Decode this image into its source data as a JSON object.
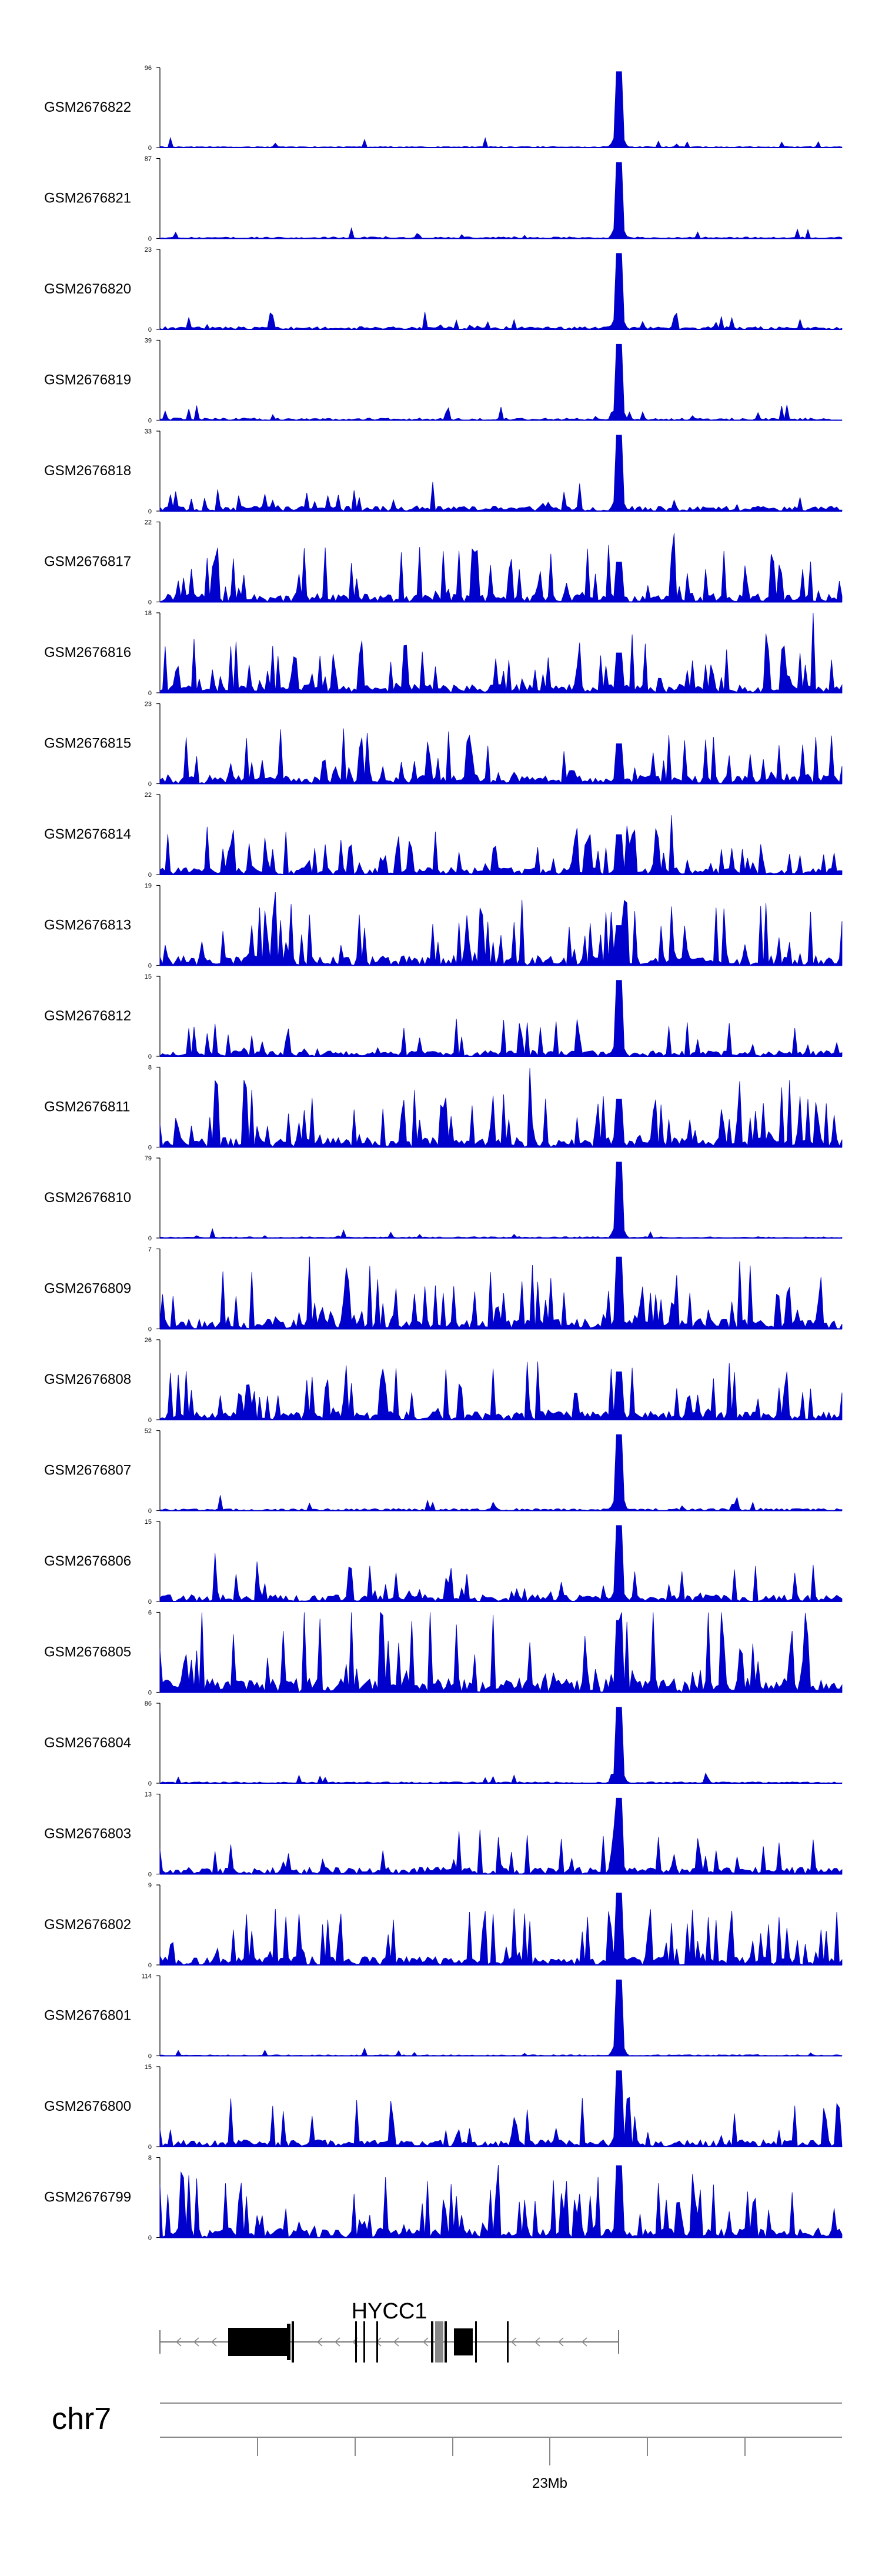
{
  "chart_data": {
    "type": "area",
    "fill_color": "#0000cc",
    "tracks": [
      {
        "name": "GSM2676822",
        "ymax": "96",
        "ymin": "0",
        "peak": 0.95,
        "bg": 0.05,
        "spikiness": 0.02,
        "seed": 11
      },
      {
        "name": "GSM2676821",
        "ymax": "87",
        "ymin": "0",
        "peak": 0.95,
        "bg": 0.06,
        "spikiness": 0.03,
        "seed": 12
      },
      {
        "name": "GSM2676820",
        "ymax": "23",
        "ymin": "0",
        "peak": 0.95,
        "bg": 0.1,
        "spikiness": 0.1,
        "seed": 13
      },
      {
        "name": "GSM2676819",
        "ymax": "39",
        "ymin": "0",
        "peak": 0.95,
        "bg": 0.08,
        "spikiness": 0.05,
        "seed": 14
      },
      {
        "name": "GSM2676818",
        "ymax": "33",
        "ymin": "0",
        "peak": 0.95,
        "bg": 0.18,
        "spikiness": 0.4,
        "seed": 15
      },
      {
        "name": "GSM2676817",
        "ymax": "22",
        "ymin": "0",
        "peak": 0.5,
        "bg": 0.3,
        "spikiness": 1.0,
        "seed": 16
      },
      {
        "name": "GSM2676816",
        "ymax": "18",
        "ymin": "0",
        "peak": 0.5,
        "bg": 0.3,
        "spikiness": 1.0,
        "seed": 17
      },
      {
        "name": "GSM2676815",
        "ymax": "23",
        "ymin": "0",
        "peak": 0.5,
        "bg": 0.3,
        "spikiness": 1.0,
        "seed": 18
      },
      {
        "name": "GSM2676814",
        "ymax": "22",
        "ymin": "0",
        "peak": 0.5,
        "bg": 0.25,
        "spikiness": 1.0,
        "seed": 19
      },
      {
        "name": "GSM2676813",
        "ymax": "19",
        "ymin": "0",
        "peak": 0.5,
        "bg": 0.35,
        "spikiness": 1.0,
        "seed": 20
      },
      {
        "name": "GSM2676812",
        "ymax": "15",
        "ymin": "0",
        "peak": 0.95,
        "bg": 0.2,
        "spikiness": 0.6,
        "seed": 21
      },
      {
        "name": "GSM2676811",
        "ymax": "8",
        "ymin": "0",
        "peak": 0.6,
        "bg": 0.35,
        "spikiness": 1.0,
        "seed": 22
      },
      {
        "name": "GSM2676810",
        "ymax": "79",
        "ymin": "0",
        "peak": 0.95,
        "bg": 0.05,
        "spikiness": 0.03,
        "seed": 23
      },
      {
        "name": "GSM2676809",
        "ymax": "7",
        "ymin": "0",
        "peak": 0.9,
        "bg": 0.35,
        "spikiness": 1.0,
        "seed": 24
      },
      {
        "name": "GSM2676808",
        "ymax": "26",
        "ymin": "0",
        "peak": 0.6,
        "bg": 0.3,
        "spikiness": 1.0,
        "seed": 25
      },
      {
        "name": "GSM2676807",
        "ymax": "52",
        "ymin": "0",
        "peak": 0.95,
        "bg": 0.08,
        "spikiness": 0.08,
        "seed": 26
      },
      {
        "name": "GSM2676806",
        "ymax": "15",
        "ymin": "0",
        "peak": 0.95,
        "bg": 0.25,
        "spikiness": 0.7,
        "seed": 27
      },
      {
        "name": "GSM2676805",
        "ymax": "6",
        "ymin": "0",
        "peak": 0.9,
        "bg": 0.5,
        "spikiness": 1.0,
        "seed": 28
      },
      {
        "name": "GSM2676804",
        "ymax": "86",
        "ymin": "0",
        "peak": 0.95,
        "bg": 0.05,
        "spikiness": 0.03,
        "seed": 29
      },
      {
        "name": "GSM2676803",
        "ymax": "13",
        "ymin": "0",
        "peak": 0.95,
        "bg": 0.25,
        "spikiness": 0.7,
        "seed": 30
      },
      {
        "name": "GSM2676802",
        "ymax": "9",
        "ymin": "0",
        "peak": 0.9,
        "bg": 0.3,
        "spikiness": 0.9,
        "seed": 31
      },
      {
        "name": "GSM2676801",
        "ymax": "114",
        "ymin": "0",
        "peak": 0.95,
        "bg": 0.04,
        "spikiness": 0.02,
        "seed": 32
      },
      {
        "name": "GSM2676800",
        "ymax": "15",
        "ymin": "0",
        "peak": 0.95,
        "bg": 0.25,
        "spikiness": 0.7,
        "seed": 33
      },
      {
        "name": "GSM2676799",
        "ymax": "8",
        "ymin": "0",
        "peak": 0.9,
        "bg": 0.35,
        "spikiness": 1.0,
        "seed": 34
      }
    ],
    "gene": {
      "name": "HYCC1",
      "strand": "-"
    },
    "chromosome": "chr7",
    "axis_label": "23Mb"
  }
}
